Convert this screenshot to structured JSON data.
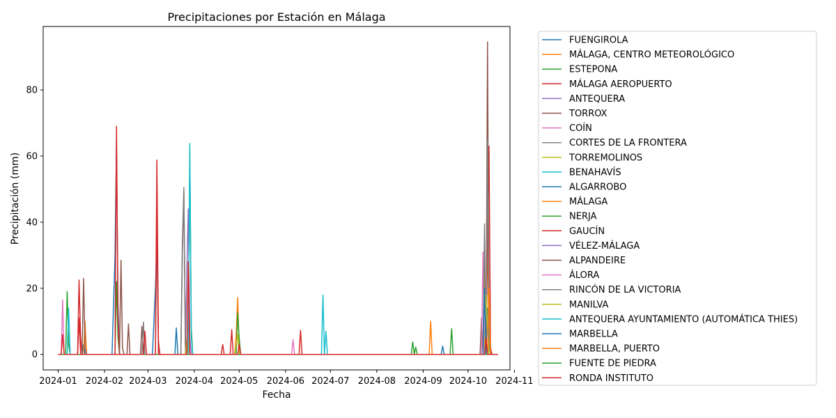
{
  "chart_data": {
    "type": "line",
    "title": "Precipitaciones por Estación en Málaga",
    "xlabel": "Fecha",
    "ylabel": "Precipitación (mm)",
    "xlim": [
      "2023-12-22",
      "2024-10-29"
    ],
    "ylim": [
      -4.7,
      99.2
    ],
    "x_ticks": [
      "2024-01-01",
      "2024-02-01",
      "2024-03-01",
      "2024-04-01",
      "2024-05-01",
      "2024-06-01",
      "2024-07-01",
      "2024-08-01",
      "2024-09-01",
      "2024-10-01",
      "2024-11-01"
    ],
    "x_tick_labels": [
      "2024-01",
      "2024-02",
      "2024-03",
      "2024-04",
      "2024-05",
      "2024-06",
      "2024-07",
      "2024-08",
      "2024-09",
      "2024-10",
      "2024-11"
    ],
    "y_ticks": [
      0,
      20,
      40,
      60,
      80
    ],
    "y_tick_labels": [
      "0",
      "20",
      "40",
      "60",
      "80"
    ],
    "grid": false,
    "legend_position": "outside-right",
    "series": [
      {
        "name": "FUENGIROLA",
        "color": "#1f77b4",
        "points": [
          [
            "2024-01-01",
            0
          ],
          [
            "2024-01-17",
            0
          ],
          [
            "2024-01-18",
            3
          ],
          [
            "2024-01-19",
            0
          ],
          [
            "2024-02-06",
            0
          ],
          [
            "2024-02-08",
            30
          ],
          [
            "2024-02-09",
            64
          ],
          [
            "2024-02-10",
            15
          ],
          [
            "2024-02-11",
            0
          ],
          [
            "2024-03-04",
            0
          ],
          [
            "2024-03-06",
            20
          ],
          [
            "2024-03-07",
            34
          ],
          [
            "2024-03-08",
            4
          ],
          [
            "2024-03-09",
            0
          ],
          [
            "2024-03-19",
            0
          ],
          [
            "2024-03-20",
            8
          ],
          [
            "2024-03-21",
            0
          ],
          [
            "2024-09-13",
            0
          ],
          [
            "2024-09-14",
            2.5
          ],
          [
            "2024-09-15",
            0
          ],
          [
            "2024-10-13",
            0
          ],
          [
            "2024-10-14",
            14
          ],
          [
            "2024-10-15",
            3
          ],
          [
            "2024-10-16",
            0
          ],
          [
            "2024-10-21",
            0
          ]
        ]
      },
      {
        "name": "MÁLAGA, CENTRO METEOROLÓGICO",
        "color": "#ff7f0e",
        "points": [
          [
            "2024-01-01",
            0
          ],
          [
            "2024-01-18",
            0
          ],
          [
            "2024-01-19",
            10
          ],
          [
            "2024-01-20",
            0
          ],
          [
            "2024-04-28",
            0
          ],
          [
            "2024-04-29",
            6
          ],
          [
            "2024-04-30",
            17.2
          ],
          [
            "2024-05-01",
            2
          ],
          [
            "2024-05-02",
            0
          ],
          [
            "2024-09-05",
            0
          ],
          [
            "2024-09-06",
            10
          ],
          [
            "2024-09-07",
            0
          ],
          [
            "2024-10-11",
            0
          ],
          [
            "2024-10-12",
            25
          ],
          [
            "2024-10-13",
            10
          ],
          [
            "2024-10-14",
            34
          ],
          [
            "2024-10-15",
            4
          ],
          [
            "2024-10-16",
            0
          ],
          [
            "2024-10-21",
            0
          ]
        ]
      },
      {
        "name": "ESTEPONA",
        "color": "#2ca02c",
        "points": [
          [
            "2024-01-01",
            0
          ],
          [
            "2024-01-06",
            0
          ],
          [
            "2024-01-07",
            19
          ],
          [
            "2024-01-08",
            3
          ],
          [
            "2024-01-09",
            0
          ],
          [
            "2024-02-08",
            0
          ],
          [
            "2024-02-09",
            22
          ],
          [
            "2024-02-10",
            5
          ],
          [
            "2024-02-11",
            0
          ],
          [
            "2024-03-28",
            0
          ],
          [
            "2024-03-29",
            62
          ],
          [
            "2024-03-30",
            8
          ],
          [
            "2024-03-31",
            0
          ],
          [
            "2024-04-29",
            0
          ],
          [
            "2024-04-30",
            12.5
          ],
          [
            "2024-05-01",
            5
          ],
          [
            "2024-05-02",
            0
          ],
          [
            "2024-08-24",
            0
          ],
          [
            "2024-08-25",
            3.8
          ],
          [
            "2024-08-26",
            0
          ],
          [
            "2024-08-27",
            2.2
          ],
          [
            "2024-08-28",
            0
          ],
          [
            "2024-09-19",
            0
          ],
          [
            "2024-09-20",
            7.8
          ],
          [
            "2024-09-21",
            0
          ],
          [
            "2024-10-14",
            0
          ],
          [
            "2024-10-15",
            7
          ],
          [
            "2024-10-16",
            0
          ],
          [
            "2024-10-21",
            0
          ]
        ]
      },
      {
        "name": "MÁLAGA AEROPUERTO",
        "color": "#d62728",
        "points": [
          [
            "2024-01-01",
            0
          ],
          [
            "2024-01-14",
            0
          ],
          [
            "2024-01-15",
            22.5
          ],
          [
            "2024-01-16",
            5
          ],
          [
            "2024-01-17",
            0
          ],
          [
            "2024-02-08",
            0
          ],
          [
            "2024-02-09",
            69
          ],
          [
            "2024-02-10",
            10
          ],
          [
            "2024-02-11",
            0
          ],
          [
            "2024-03-06",
            0
          ],
          [
            "2024-03-07",
            58.8
          ],
          [
            "2024-03-08",
            4
          ],
          [
            "2024-03-09",
            0
          ],
          [
            "2024-04-19",
            0
          ],
          [
            "2024-04-20",
            3
          ],
          [
            "2024-04-21",
            0
          ],
          [
            "2024-04-25",
            0
          ],
          [
            "2024-04-26",
            7.5
          ],
          [
            "2024-04-27",
            0
          ],
          [
            "2024-06-10",
            0
          ],
          [
            "2024-06-11",
            7.3
          ],
          [
            "2024-06-12",
            0
          ],
          [
            "2024-10-13",
            0
          ],
          [
            "2024-10-14",
            35
          ],
          [
            "2024-10-15",
            63
          ],
          [
            "2024-10-16",
            2
          ],
          [
            "2024-10-17",
            0
          ],
          [
            "2024-10-21",
            0
          ]
        ]
      },
      {
        "name": "ANTEQUERA",
        "color": "#9467bd",
        "points": [
          [
            "2024-01-01",
            0
          ],
          [
            "2024-03-26",
            0
          ],
          [
            "2024-03-27",
            25
          ],
          [
            "2024-03-28",
            44
          ],
          [
            "2024-03-29",
            5
          ],
          [
            "2024-03-30",
            0
          ],
          [
            "2024-10-21",
            0
          ]
        ]
      },
      {
        "name": "TORROX",
        "color": "#8c564b",
        "points": [
          [
            "2024-01-01",
            0
          ],
          [
            "2024-01-17",
            0
          ],
          [
            "2024-01-18",
            23
          ],
          [
            "2024-01-19",
            2
          ],
          [
            "2024-01-20",
            0
          ],
          [
            "2024-02-11",
            0
          ],
          [
            "2024-02-12",
            28.5
          ],
          [
            "2024-02-13",
            2
          ],
          [
            "2024-02-14",
            0
          ],
          [
            "2024-02-16",
            0
          ],
          [
            "2024-02-17",
            9.2
          ],
          [
            "2024-02-18",
            0
          ],
          [
            "2024-02-25",
            0
          ],
          [
            "2024-02-26",
            8.5
          ],
          [
            "2024-02-27",
            0
          ],
          [
            "2024-03-23",
            0
          ],
          [
            "2024-03-24",
            30
          ],
          [
            "2024-03-25",
            49
          ],
          [
            "2024-03-26",
            3
          ],
          [
            "2024-03-27",
            0
          ],
          [
            "2024-10-09",
            0
          ],
          [
            "2024-10-10",
            11
          ],
          [
            "2024-10-11",
            0
          ],
          [
            "2024-10-13",
            0
          ],
          [
            "2024-10-14",
            94.5
          ],
          [
            "2024-10-15",
            7
          ],
          [
            "2024-10-16",
            0
          ],
          [
            "2024-10-21",
            0
          ]
        ]
      },
      {
        "name": "COÍN",
        "color": "#e377c2",
        "points": [
          [
            "2024-01-01",
            0
          ],
          [
            "2024-01-03",
            0
          ],
          [
            "2024-01-04",
            16.5
          ],
          [
            "2024-01-05",
            0
          ],
          [
            "2024-06-05",
            0
          ],
          [
            "2024-06-06",
            4.5
          ],
          [
            "2024-06-07",
            0
          ],
          [
            "2024-10-10",
            0
          ],
          [
            "2024-10-11",
            31
          ],
          [
            "2024-10-12",
            0
          ],
          [
            "2024-10-21",
            0
          ]
        ]
      },
      {
        "name": "CORTES DE LA FRONTERA",
        "color": "#7f7f7f",
        "points": [
          [
            "2024-01-01",
            0
          ],
          [
            "2024-02-26",
            0
          ],
          [
            "2024-02-27",
            9.8
          ],
          [
            "2024-02-28",
            0
          ],
          [
            "2024-03-23",
            0
          ],
          [
            "2024-03-24",
            33
          ],
          [
            "2024-03-25",
            50.5
          ],
          [
            "2024-03-26",
            6
          ],
          [
            "2024-03-27",
            0
          ],
          [
            "2024-10-11",
            0
          ],
          [
            "2024-10-12",
            39.5
          ],
          [
            "2024-10-13",
            0
          ],
          [
            "2024-10-14",
            65
          ],
          [
            "2024-10-15",
            5
          ],
          [
            "2024-10-16",
            0
          ],
          [
            "2024-10-21",
            0
          ]
        ]
      },
      {
        "name": "TORREMOLINOS",
        "color": "#bcbd22",
        "points": [
          [
            "2024-01-01",
            0
          ],
          [
            "2024-03-26",
            0
          ],
          [
            "2024-03-27",
            4
          ],
          [
            "2024-03-28",
            0
          ],
          [
            "2024-04-28",
            0
          ],
          [
            "2024-04-29",
            3
          ],
          [
            "2024-04-30",
            6
          ],
          [
            "2024-05-01",
            0
          ],
          [
            "2024-10-12",
            0
          ],
          [
            "2024-10-13",
            18
          ],
          [
            "2024-10-14",
            8
          ],
          [
            "2024-10-15",
            0
          ],
          [
            "2024-10-21",
            0
          ]
        ]
      },
      {
        "name": "BENAHAVÍS",
        "color": "#17becf",
        "points": [
          [
            "2024-01-01",
            0
          ],
          [
            "2024-01-07",
            0
          ],
          [
            "2024-01-08",
            14
          ],
          [
            "2024-01-09",
            0
          ],
          [
            "2024-03-27",
            0
          ],
          [
            "2024-03-28",
            0
          ],
          [
            "2024-03-29",
            63.8
          ],
          [
            "2024-03-30",
            5
          ],
          [
            "2024-03-31",
            0
          ],
          [
            "2024-06-25",
            0
          ],
          [
            "2024-06-26",
            18
          ],
          [
            "2024-06-27",
            0
          ],
          [
            "2024-06-28",
            7
          ],
          [
            "2024-06-29",
            0
          ],
          [
            "2024-10-21",
            0
          ]
        ]
      },
      {
        "name": "ALGARROBO",
        "color": "#1f77b4",
        "points": [
          [
            "2024-01-01",
            0
          ],
          [
            "2024-10-11",
            0
          ],
          [
            "2024-10-12",
            20
          ],
          [
            "2024-10-13",
            0
          ],
          [
            "2024-10-21",
            0
          ]
        ]
      },
      {
        "name": "MÁLAGA",
        "color": "#ff7f0e",
        "points": [
          [
            "2024-01-01",
            0
          ],
          [
            "2024-10-14",
            0
          ],
          [
            "2024-10-15",
            20
          ],
          [
            "2024-10-16",
            0
          ],
          [
            "2024-10-21",
            0
          ]
        ]
      },
      {
        "name": "NERJA",
        "color": "#2ca02c",
        "points": [
          [
            "2024-01-01",
            0
          ],
          [
            "2024-10-21",
            0
          ]
        ]
      },
      {
        "name": "GAUCÍN",
        "color": "#d62728",
        "points": [
          [
            "2024-01-01",
            0
          ],
          [
            "2024-10-21",
            0
          ]
        ]
      },
      {
        "name": "VÉLEZ-MÁLAGA",
        "color": "#9467bd",
        "points": [
          [
            "2024-01-01",
            0
          ],
          [
            "2024-10-21",
            0
          ]
        ]
      },
      {
        "name": "ALPANDEIRE",
        "color": "#8c564b",
        "points": [
          [
            "2024-01-01",
            0
          ],
          [
            "2024-10-21",
            0
          ]
        ]
      },
      {
        "name": "ÁLORA",
        "color": "#e377c2",
        "points": [
          [
            "2024-01-01",
            0
          ],
          [
            "2024-10-21",
            0
          ]
        ]
      },
      {
        "name": "RINCÓN DE LA VICTORIA",
        "color": "#7f7f7f",
        "points": [
          [
            "2024-01-01",
            0
          ],
          [
            "2024-10-21",
            0
          ]
        ]
      },
      {
        "name": "MANILVA",
        "color": "#bcbd22",
        "points": [
          [
            "2024-01-01",
            0
          ],
          [
            "2024-10-21",
            0
          ]
        ]
      },
      {
        "name": "ANTEQUERA AYUNTAMIENTO (AUTOMÁTICA THIES)",
        "color": "#17becf",
        "points": [
          [
            "2024-01-01",
            0
          ],
          [
            "2024-10-21",
            0
          ]
        ]
      },
      {
        "name": "MARBELLA",
        "color": "#1f77b4",
        "points": [
          [
            "2024-01-01",
            0
          ],
          [
            "2024-10-21",
            0
          ]
        ]
      },
      {
        "name": "MARBELLA, PUERTO",
        "color": "#ff7f0e",
        "points": [
          [
            "2024-01-01",
            0
          ],
          [
            "2024-10-21",
            0
          ]
        ]
      },
      {
        "name": "FUENTE DE PIEDRA",
        "color": "#2ca02c",
        "points": [
          [
            "2024-01-01",
            0
          ],
          [
            "2024-10-21",
            0
          ]
        ]
      },
      {
        "name": "RONDA INSTITUTO",
        "color": "#d62728",
        "points": [
          [
            "2024-01-01",
            0
          ],
          [
            "2024-01-03",
            0
          ],
          [
            "2024-01-04",
            6
          ],
          [
            "2024-01-05",
            0
          ],
          [
            "2024-01-14",
            0
          ],
          [
            "2024-01-15",
            11
          ],
          [
            "2024-01-16",
            0
          ],
          [
            "2024-02-27",
            0
          ],
          [
            "2024-02-28",
            7
          ],
          [
            "2024-02-29",
            0
          ],
          [
            "2024-03-06",
            0
          ],
          [
            "2024-03-07",
            46.5
          ],
          [
            "2024-03-08",
            0
          ],
          [
            "2024-03-27",
            0
          ],
          [
            "2024-03-28",
            28
          ],
          [
            "2024-03-29",
            0
          ],
          [
            "2024-04-30",
            0
          ],
          [
            "2024-05-01",
            3
          ],
          [
            "2024-05-02",
            0
          ],
          [
            "2024-10-12",
            0
          ],
          [
            "2024-10-13",
            5
          ],
          [
            "2024-10-14",
            0
          ],
          [
            "2024-10-21",
            0
          ]
        ]
      }
    ]
  }
}
